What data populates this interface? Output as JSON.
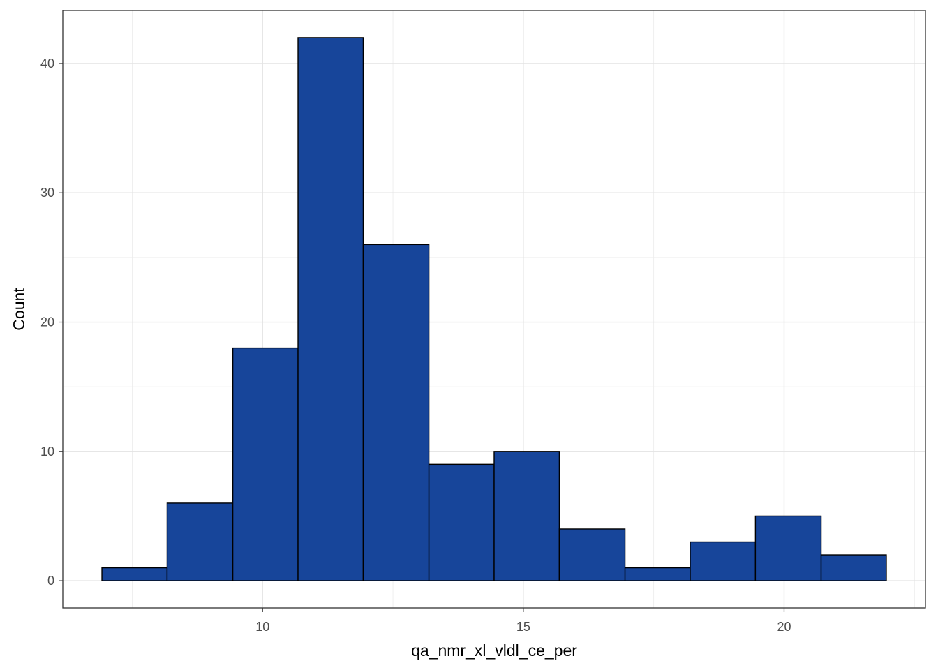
{
  "chart_data": {
    "type": "bar",
    "subtype": "histogram",
    "title": "",
    "xlabel": "qa_nmr_xl_vldl_ce_per",
    "ylabel": "Count",
    "bins": [
      {
        "x0": 6.92,
        "x1": 8.17,
        "count": 1
      },
      {
        "x0": 8.17,
        "x1": 9.43,
        "count": 6
      },
      {
        "x0": 9.43,
        "x1": 10.68,
        "count": 18
      },
      {
        "x0": 10.68,
        "x1": 11.93,
        "count": 42
      },
      {
        "x0": 11.93,
        "x1": 13.19,
        "count": 26
      },
      {
        "x0": 13.19,
        "x1": 14.44,
        "count": 9
      },
      {
        "x0": 14.44,
        "x1": 15.69,
        "count": 10
      },
      {
        "x0": 15.69,
        "x1": 16.95,
        "count": 4
      },
      {
        "x0": 16.95,
        "x1": 18.2,
        "count": 1
      },
      {
        "x0": 18.2,
        "x1": 19.45,
        "count": 3
      },
      {
        "x0": 19.45,
        "x1": 20.71,
        "count": 5
      },
      {
        "x0": 20.71,
        "x1": 21.96,
        "count": 2
      }
    ],
    "xlim": [
      6.17,
      22.71
    ],
    "ylim": [
      -2.1,
      44.1
    ],
    "x_ticks": [
      10,
      15,
      20
    ],
    "y_ticks": [
      0,
      10,
      20,
      30,
      40
    ],
    "grid": true,
    "fill_color": "#17459a",
    "edge_color": "#000000"
  }
}
